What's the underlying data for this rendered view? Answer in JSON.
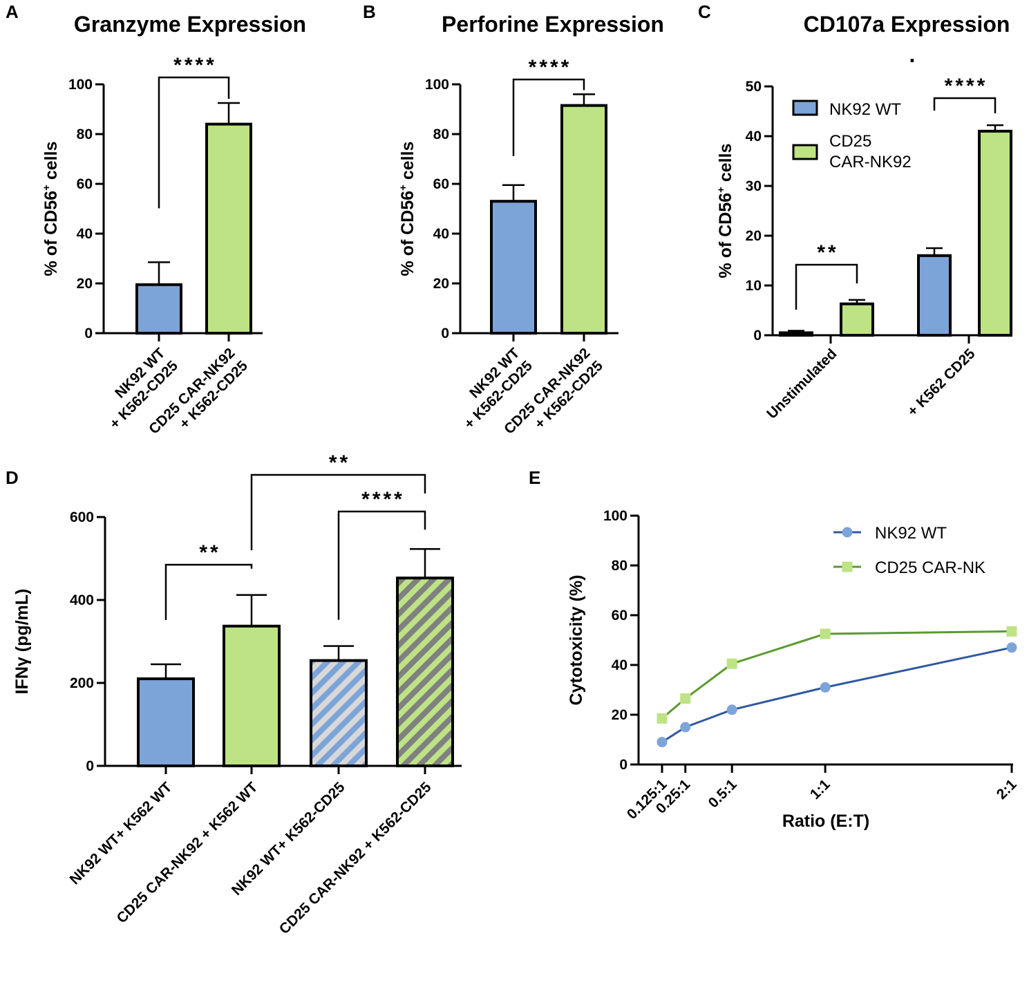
{
  "colors": {
    "blue": "#7ca4d8",
    "green": "#bde384",
    "stripe_grey": "#808080",
    "stripe_light": "#d8d8d8",
    "line_blue": "#2f58a0",
    "line_green": "#5b9a2e"
  },
  "chart_data": [
    {
      "panel": "A",
      "type": "bar",
      "title": "Granzyme Expression",
      "ylabel": "% of CD56",
      "ylabel_sup": "+",
      "ylabel_suffix": " cells",
      "ylim": [
        0,
        100
      ],
      "yticks": [
        0,
        20,
        40,
        60,
        80,
        100
      ],
      "categories": [
        [
          "NK92 WT",
          "+ K562-CD25"
        ],
        [
          "CD25 CAR-NK92",
          "+ K562-CD25"
        ]
      ],
      "values": [
        19.5,
        84
      ],
      "errors": [
        9,
        8.5
      ],
      "significance": [
        {
          "from": 0,
          "to": 1,
          "label": "****"
        }
      ]
    },
    {
      "panel": "B",
      "type": "bar",
      "title": "Perforine Expression",
      "ylabel": "% of CD56",
      "ylabel_sup": "+",
      "ylabel_suffix": " cells",
      "ylim": [
        0,
        100
      ],
      "yticks": [
        0,
        20,
        40,
        60,
        80,
        100
      ],
      "categories": [
        [
          "NK92 WT",
          "+ K562-CD25"
        ],
        [
          "CD25 CAR-NK92",
          "+ K562-CD25"
        ]
      ],
      "values": [
        53,
        91.5
      ],
      "errors": [
        6.5,
        4.5
      ],
      "significance": [
        {
          "from": 0,
          "to": 1,
          "label": "****"
        }
      ]
    },
    {
      "panel": "C",
      "type": "bar",
      "title": "CD107a Expression",
      "title_mark": ".",
      "ylabel": "% of CD56",
      "ylabel_sup": "+",
      "ylabel_suffix": " cells",
      "ylim": [
        0,
        50
      ],
      "yticks": [
        0,
        10,
        20,
        30,
        40,
        50
      ],
      "categories": [
        "Unstimulated",
        "+ K562 CD25"
      ],
      "series": [
        {
          "name": "NK92 WT",
          "values": [
            0.5,
            16
          ],
          "errors": [
            0.4,
            1.5
          ]
        },
        {
          "name": "CD25 CAR-NK92",
          "name_lines": [
            "CD25",
            "CAR-NK92"
          ],
          "values": [
            6.3,
            41
          ],
          "errors": [
            0.8,
            1.2
          ]
        }
      ],
      "significance": [
        {
          "group": 0,
          "label": "**"
        },
        {
          "group": 1,
          "label": "****"
        }
      ]
    },
    {
      "panel": "D",
      "type": "bar",
      "ylabel": "IFNγ (pg/mL)",
      "ylim": [
        0,
        600
      ],
      "yticks": [
        0,
        200,
        400,
        600
      ],
      "categories": [
        "NK92 WT+ K562 WT",
        "CD25 CAR-NK92 + K562 WT",
        "NK92 WT+ K562-CD25",
        "CD25 CAR-NK92 + K562-CD25"
      ],
      "values": [
        210,
        337,
        254,
        453
      ],
      "errors": [
        35,
        75,
        35,
        70
      ],
      "significance": [
        {
          "from": 0,
          "to": 1,
          "label": "**"
        },
        {
          "from": 2,
          "to": 3,
          "label": "****"
        },
        {
          "from": 1,
          "to": 3,
          "label": "**"
        }
      ]
    },
    {
      "panel": "E",
      "type": "line",
      "xlabel": "Ratio (E:T)",
      "ylabel": "Cytotoxicity (%)",
      "ylim": [
        0,
        100
      ],
      "yticks": [
        0,
        20,
        40,
        60,
        80,
        100
      ],
      "x": [
        0.125,
        0.25,
        0.5,
        1,
        2
      ],
      "xticklabels": [
        "0.125:1",
        "0.25:1",
        "0.5:1",
        "1:1",
        "2:1"
      ],
      "series": [
        {
          "name": "NK92 WT",
          "marker": "circle",
          "values": [
            9,
            15,
            22,
            31,
            47
          ]
        },
        {
          "name": "CD25 CAR-NK",
          "marker": "square",
          "values": [
            18.5,
            26.5,
            40.5,
            52.5,
            53.5
          ]
        }
      ]
    }
  ]
}
